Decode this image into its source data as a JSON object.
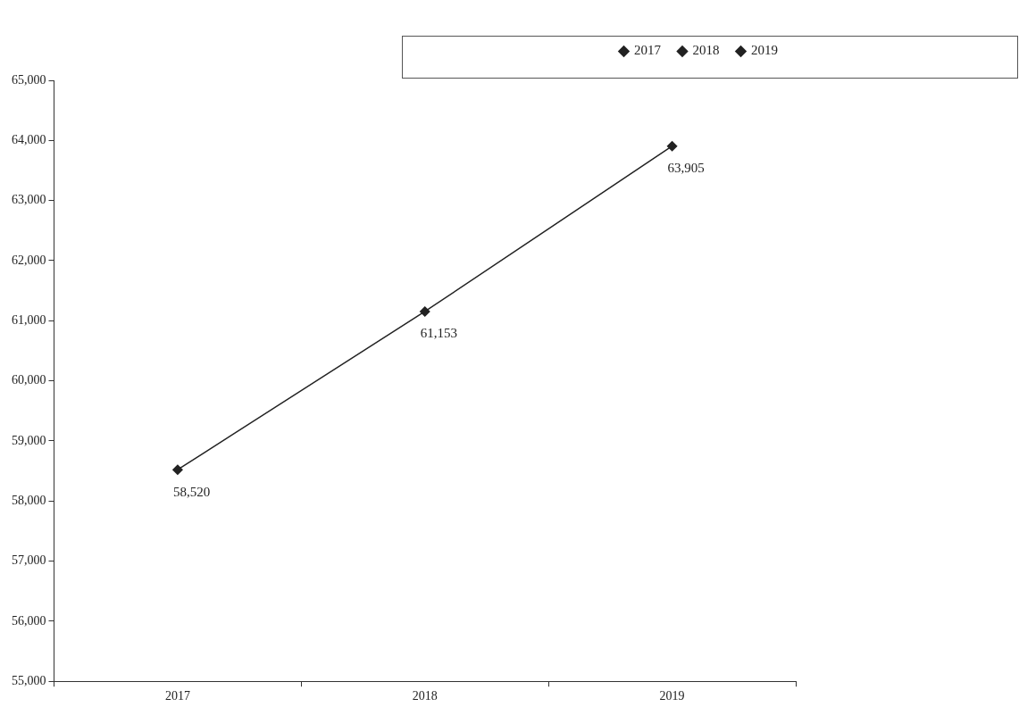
{
  "chart_data": {
    "type": "line",
    "categories": [
      "2017",
      "2018",
      "2019"
    ],
    "series": [
      {
        "color": "#222222",
        "values": [
          58520,
          61153,
          63905
        ],
        "marker": "none"
      },
      {
        "name": "2017",
        "color": "#222222",
        "values": [
          58520,
          null,
          null
        ],
        "marker": "diamond",
        "value_labels": [
          "58,520",
          null,
          null
        ]
      },
      {
        "name": "2018",
        "color": "#222222",
        "values": [
          null,
          61153,
          null
        ],
        "marker": "diamond",
        "value_labels": [
          null,
          "61,153",
          null
        ]
      },
      {
        "name": "2019",
        "color": "#222222",
        "values": [
          null,
          null,
          63905
        ],
        "marker": "diamond",
        "value_labels": [
          null,
          null,
          "63,905"
        ]
      }
    ],
    "ylim": [
      55000,
      65000
    ],
    "yticks": [
      {
        "value": 55000,
        "label": "55,000"
      },
      {
        "value": 56000,
        "label": "56,000"
      },
      {
        "value": 57000,
        "label": "57,000"
      },
      {
        "value": 58000,
        "label": "58,000"
      },
      {
        "value": 59000,
        "label": "59,000"
      },
      {
        "value": 60000,
        "label": "60,000"
      },
      {
        "value": 61000,
        "label": "61,000"
      },
      {
        "value": 62000,
        "label": "62,000"
      },
      {
        "value": 63000,
        "label": "63,000"
      },
      {
        "value": 64000,
        "label": "64,000"
      },
      {
        "value": 65000,
        "label": "65,000"
      }
    ],
    "legend": "top right"
  }
}
